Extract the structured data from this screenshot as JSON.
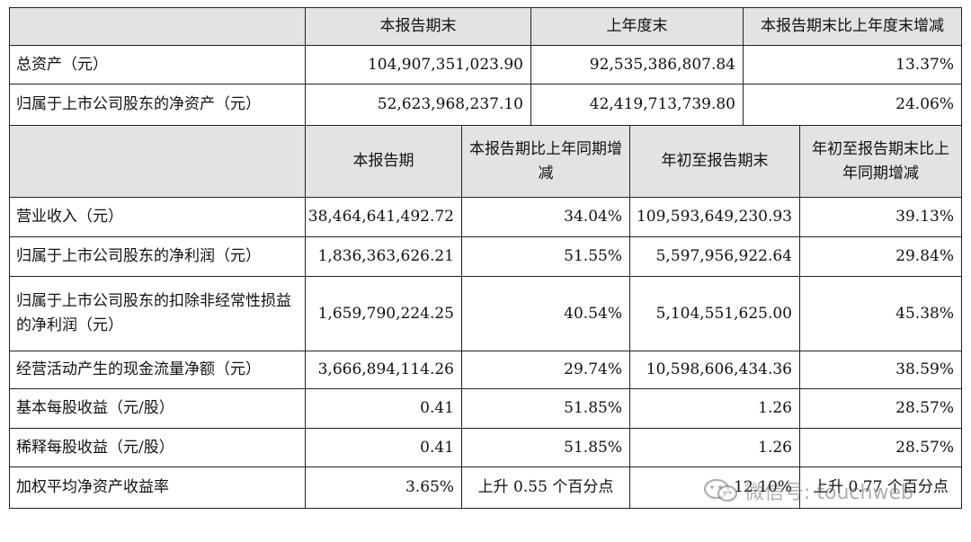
{
  "top_header": {
    "col1": "本报告期末",
    "col2": "上年度末",
    "col3": "本报告期末比上年度末增减"
  },
  "top_rows": [
    {
      "label": "总资产（元）",
      "v1": "104,907,351,023.90",
      "v2": "92,535,386,807.84",
      "v3": "13.37%"
    },
    {
      "label": "归属于上市公司股东的净资产（元）",
      "v1": "52,623,968,237.10",
      "v2": "42,419,713,739.80",
      "v3": "24.06%"
    }
  ],
  "second_header": {
    "col1": "本报告期",
    "col2": "本报告期比上年同期增减",
    "col3": "年初至报告期末",
    "col4": "年初至报告期末比上年同期增减"
  },
  "rows": [
    {
      "label": "营业收入（元）",
      "v1": "38,464,641,492.72",
      "v2": "34.04%",
      "v3": "109,593,649,230.93",
      "v4": "39.13%"
    },
    {
      "label": "归属于上市公司股东的净利润（元）",
      "v1": "1,836,363,626.21",
      "v2": "51.55%",
      "v3": "5,597,956,922.64",
      "v4": "29.84%"
    },
    {
      "label": "归属于上市公司股东的扣除非经常性损益的净利润（元）",
      "v1": "1,659,790,224.25",
      "v2": "40.54%",
      "v3": "5,104,551,625.00",
      "v4": "45.38%"
    },
    {
      "label": "经营活动产生的现金流量净额（元）",
      "v1": "3,666,894,114.26",
      "v2": "29.74%",
      "v3": "10,598,606,434.36",
      "v4": "38.59%"
    },
    {
      "label": "基本每股收益（元/股）",
      "v1": "0.41",
      "v2": "51.85%",
      "v3": "1.26",
      "v4": "28.57%"
    },
    {
      "label": "稀释每股收益（元/股）",
      "v1": "0.41",
      "v2": "51.85%",
      "v3": "1.26",
      "v4": "28.57%"
    },
    {
      "label": "加权平均净资产收益率",
      "v1": "3.65%",
      "v2": "上升 0.55 个百分点",
      "v3": "12.10%",
      "v4": "上升 0.77 个百分点"
    }
  ],
  "watermark": {
    "text": "微信号: touchweb",
    "icon": "wechat-icon"
  }
}
